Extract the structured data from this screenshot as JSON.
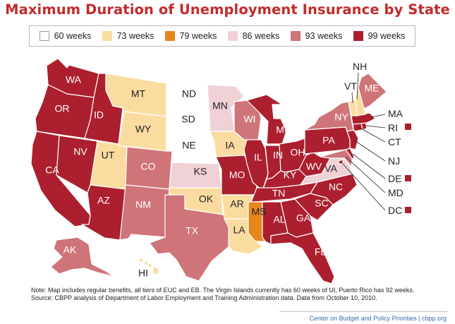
{
  "title": "Maximum Duration of Unemployment Insurance by State",
  "legend": [
    {
      "label": "60 weeks",
      "color": "#ffffff"
    },
    {
      "label": "73 weeks",
      "color": "#fbdca0"
    },
    {
      "label": "79 weeks",
      "color": "#e8861e"
    },
    {
      "label": "86 weeks",
      "color": "#efd1d6"
    },
    {
      "label": "93 weeks",
      "color": "#cf7478"
    },
    {
      "label": "99 weeks",
      "color": "#ab1f2e"
    }
  ],
  "colors": {
    "w60": "#ffffff",
    "w73": "#fbdca0",
    "w79": "#e8861e",
    "w86": "#efd1d6",
    "w93": "#cf7478",
    "w99": "#ab1f2e"
  },
  "states": {
    "WA": {
      "label": "WA",
      "weeks": 99
    },
    "OR": {
      "label": "OR",
      "weeks": 99
    },
    "CA": {
      "label": "CA",
      "weeks": 99
    },
    "NV": {
      "label": "NV",
      "weeks": 99
    },
    "ID": {
      "label": "ID",
      "weeks": 99
    },
    "MT": {
      "label": "MT",
      "weeks": 73
    },
    "WY": {
      "label": "WY",
      "weeks": 73
    },
    "UT": {
      "label": "UT",
      "weeks": 73
    },
    "AZ": {
      "label": "AZ",
      "weeks": 99
    },
    "CO": {
      "label": "CO",
      "weeks": 93
    },
    "NM": {
      "label": "NM",
      "weeks": 93
    },
    "ND": {
      "label": "ND",
      "weeks": 60
    },
    "SD": {
      "label": "SD",
      "weeks": 60
    },
    "NE": {
      "label": "NE",
      "weeks": 60
    },
    "KS": {
      "label": "KS",
      "weeks": 86
    },
    "OK": {
      "label": "OK",
      "weeks": 73
    },
    "TX": {
      "label": "TX",
      "weeks": 93
    },
    "MN": {
      "label": "MN",
      "weeks": 86
    },
    "IA": {
      "label": "IA",
      "weeks": 73
    },
    "MO": {
      "label": "MO",
      "weeks": 99
    },
    "AR": {
      "label": "AR",
      "weeks": 73
    },
    "LA": {
      "label": "LA",
      "weeks": 73
    },
    "WI": {
      "label": "WI",
      "weeks": 93
    },
    "IL": {
      "label": "IL",
      "weeks": 99
    },
    "MI": {
      "label": "MI",
      "weeks": 99
    },
    "IN": {
      "label": "IN",
      "weeks": 99
    },
    "OH": {
      "label": "OH",
      "weeks": 99
    },
    "KY": {
      "label": "KY",
      "weeks": 99
    },
    "TN": {
      "label": "TN",
      "weeks": 99
    },
    "MS": {
      "label": "MS",
      "weeks": 79
    },
    "AL": {
      "label": "AL",
      "weeks": 99
    },
    "GA": {
      "label": "GA",
      "weeks": 99
    },
    "FL": {
      "label": "FL",
      "weeks": 99
    },
    "SC": {
      "label": "SC",
      "weeks": 99
    },
    "NC": {
      "label": "NC",
      "weeks": 99
    },
    "VA": {
      "label": "VA",
      "weeks": 86
    },
    "WV": {
      "label": "WV",
      "weeks": 99
    },
    "PA": {
      "label": "PA",
      "weeks": 99
    },
    "NY": {
      "label": "NY",
      "weeks": 93
    },
    "ME": {
      "label": "ME",
      "weeks": 93
    },
    "VT": {
      "label": "VT",
      "weeks": 73
    },
    "NH": {
      "label": "NH",
      "weeks": 73
    },
    "MA": {
      "label": "MA",
      "weeks": 99
    },
    "RI": {
      "label": "RI",
      "weeks": 99
    },
    "CT": {
      "label": "CT",
      "weeks": 99
    },
    "NJ": {
      "label": "NJ",
      "weeks": 99
    },
    "DE": {
      "label": "DE",
      "weeks": 99
    },
    "MD": {
      "label": "MD",
      "weeks": 93
    },
    "DC": {
      "label": "DC",
      "weeks": 99
    },
    "AK": {
      "label": "AK",
      "weeks": 93
    },
    "HI": {
      "label": "HI",
      "weeks": 73
    }
  },
  "note_line1": "Note: Map includes regular benefits, all tiers of EUC and EB. The Virgin Islands currently has 60 weeks of UI, Puerto Rico has 92 weeks.",
  "note_line2": "Source: CBPP analysis of Department of Labor Employment and Training Administration data. Data from October 10, 2010.",
  "footer": "Center on Budget and Policy Priorities | cbpp.org"
}
